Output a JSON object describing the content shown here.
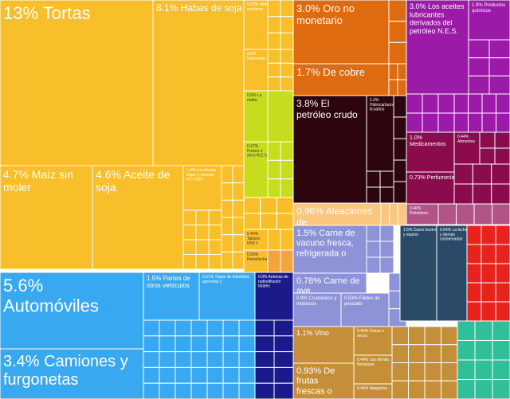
{
  "chart_data": {
    "type": "treemap",
    "title": "",
    "unit": "% of exports",
    "labeled_tiles": [
      {
        "label": "13% Tortas",
        "value": 13,
        "color": "#f8bf2a"
      },
      {
        "label": "8.1% Habas de soja",
        "value": 8.1,
        "color": "#f8bf2a"
      },
      {
        "label": "0.62% Vede ocultures",
        "value": 0.62,
        "color": "#f8bf2a"
      },
      {
        "label": "0.9% Henovede",
        "value": 0.9,
        "color": "#f8bf2a"
      },
      {
        "label": "4.7% Maíz sin moler",
        "value": 4.7,
        "color": "#f8bf2a"
      },
      {
        "label": "4.6% Aceite de soja",
        "value": 4.6,
        "color": "#f8bf2a"
      },
      {
        "label": "1.4% Los demás trigos y morcajo sin moler",
        "value": 1.4,
        "color": "#f8bf2a"
      },
      {
        "label": "0.5% La malta",
        "value": 0.5,
        "color": "#c8dc1e"
      },
      {
        "label": "0.47% Fresco o seco N.E.S",
        "value": 0.47,
        "color": "#c8dc1e"
      },
      {
        "label": "0.44% Tabaco total o",
        "value": 0.44,
        "color": "#f8bf2a"
      },
      {
        "label": "0.56% Remolacha",
        "value": 0.56,
        "color": "#f8bf2a"
      },
      {
        "label": "3.0% Oro no monetario",
        "value": 3.0,
        "color": "#de6b10"
      },
      {
        "label": "1.7% De cobre",
        "value": 1.7,
        "color": "#de6b10"
      },
      {
        "label": "3.8% El petróleo crudo",
        "value": 3.8,
        "color": "#2d050e"
      },
      {
        "label": "1.3% Hidrocarburos licuados",
        "value": 1.3,
        "color": "#2d050e"
      },
      {
        "label": "0.96% Aleaciones de",
        "value": 0.96,
        "color": "#fbc67e"
      },
      {
        "label": "3.0% Los aceites lubricantes derivados del petróleo N.E.S.",
        "value": 3.0,
        "color": "#9b1aa8"
      },
      {
        "label": "1.9% Productos químicos",
        "value": 1.9,
        "color": "#9b1aa8"
      },
      {
        "label": "1.0% Medicamentos",
        "value": 1.0,
        "color": "#8a0c4c"
      },
      {
        "label": "0.44% Alimentos",
        "value": 0.44,
        "color": "#8a0c4c"
      },
      {
        "label": "0.73% Perfumería",
        "value": 0.73,
        "color": "#8a0c4c"
      },
      {
        "label": "0.46% Polietileno",
        "value": 0.46,
        "color": "#b25485"
      },
      {
        "label": "1.5% Carne de vacuno fresca, refrigerada o",
        "value": 1.5,
        "color": "#8c93d6"
      },
      {
        "label": "0.78% Carne de ave",
        "value": 0.78,
        "color": "#8c93d6"
      },
      {
        "label": "0.9% Crustáceos y moluscos",
        "value": 0.9,
        "color": "#8c93d6"
      },
      {
        "label": "0.53% Filetes de pescado",
        "value": 0.53,
        "color": "#8c93d6"
      },
      {
        "label": "1.5% Cuero bovino y equino",
        "value": 1.5,
        "color": "#2b4a68"
      },
      {
        "label": "0.64% La leche y demás conservadas",
        "value": 0.64,
        "color": "#2b4a68"
      },
      {
        "label": "5.6% Automóviles",
        "value": 5.6,
        "color": "#38a9f0"
      },
      {
        "label": "3.4% Camiones y furgonetas",
        "value": 3.4,
        "color": "#38a9f0"
      },
      {
        "label": "1.5% Partes de otros vehículos",
        "value": 1.5,
        "color": "#38a9f0"
      },
      {
        "label": "0.51% Trigos de industrias agrícolas y",
        "value": 0.51,
        "color": "#38a9f0"
      },
      {
        "label": "0.9% Antenas de radiodifusión totales",
        "value": 0.9,
        "color": "#1a1a8a"
      },
      {
        "label": "1.1% Vino",
        "value": 1.1,
        "color": "#c58f3a"
      },
      {
        "label": "0.46% Frutas o secos",
        "value": 0.46,
        "color": "#c58f3a"
      },
      {
        "label": "0.44% Las demás hortalizas",
        "value": 0.44,
        "color": "#c58f3a"
      },
      {
        "label": "0.93% De frutas frescas o",
        "value": 0.93,
        "color": "#c58f3a"
      },
      {
        "label": "0.44% Margarina",
        "value": 0.44,
        "color": "#c58f3a"
      }
    ]
  }
}
